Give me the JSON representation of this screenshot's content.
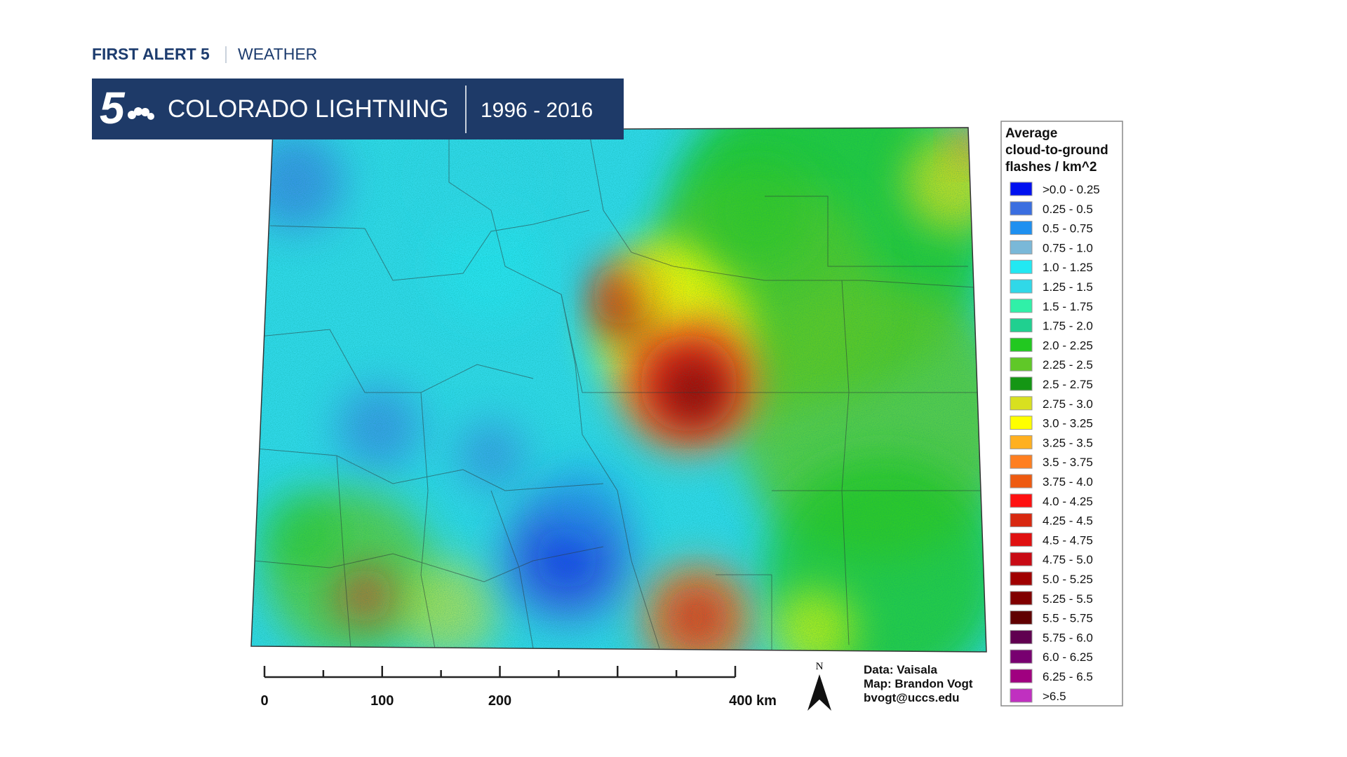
{
  "header": {
    "brand": "FIRST ALERT 5",
    "section": "WEATHER"
  },
  "banner": {
    "logo": "5",
    "title": "COLORADO LIGHTNING",
    "years": "1996 - 2016"
  },
  "legend": {
    "title": "Average cloud-to-ground flashes / km^2",
    "items": [
      {
        "label": ">0.0 - 0.25",
        "color": "#0010f0"
      },
      {
        "label": "0.25 - 0.5",
        "color": "#3a6ee0"
      },
      {
        "label": "0.5 - 0.75",
        "color": "#1e90f0"
      },
      {
        "label": "0.75 - 1.0",
        "color": "#7ab8d8"
      },
      {
        "label": "1.0 - 1.25",
        "color": "#22e8f2"
      },
      {
        "label": "1.25 - 1.5",
        "color": "#30d8e8"
      },
      {
        "label": "1.5 - 1.75",
        "color": "#30f0a8"
      },
      {
        "label": "1.75 - 2.0",
        "color": "#20d090"
      },
      {
        "label": "2.0 - 2.25",
        "color": "#22c820"
      },
      {
        "label": "2.25 - 2.5",
        "color": "#60c828"
      },
      {
        "label": "2.5 - 2.75",
        "color": "#149614"
      },
      {
        "label": "2.75 - 3.0",
        "color": "#d8e020"
      },
      {
        "label": "3.0 - 3.25",
        "color": "#ffff00"
      },
      {
        "label": "3.25 - 3.5",
        "color": "#ffb020"
      },
      {
        "label": "3.5 - 3.75",
        "color": "#ff7f20"
      },
      {
        "label": "3.75 - 4.0",
        "color": "#ee5a10"
      },
      {
        "label": "4.0 - 4.25",
        "color": "#ff1010"
      },
      {
        "label": "4.25 - 4.5",
        "color": "#d82810"
      },
      {
        "label": "4.5 - 4.75",
        "color": "#e01010"
      },
      {
        "label": "4.75 - 5.0",
        "color": "#c80a14"
      },
      {
        "label": "5.0 - 5.25",
        "color": "#a00000"
      },
      {
        "label": "5.25 - 5.5",
        "color": "#800000"
      },
      {
        "label": "5.5 - 5.75",
        "color": "#600000"
      },
      {
        "label": "5.75 - 6.0",
        "color": "#600050"
      },
      {
        "label": "6.0 - 6.25",
        "color": "#780070"
      },
      {
        "label": "6.25 - 6.5",
        "color": "#a00080"
      },
      {
        "label": ">6.5",
        "color": "#c030c0"
      }
    ]
  },
  "scale_bar": {
    "labels": [
      "0",
      "100",
      "200",
      "400 km"
    ]
  },
  "north": "N",
  "credits": [
    "Data: Vaisala",
    "Map: Brandon Vogt",
    "bvogt@uccs.edu"
  ]
}
